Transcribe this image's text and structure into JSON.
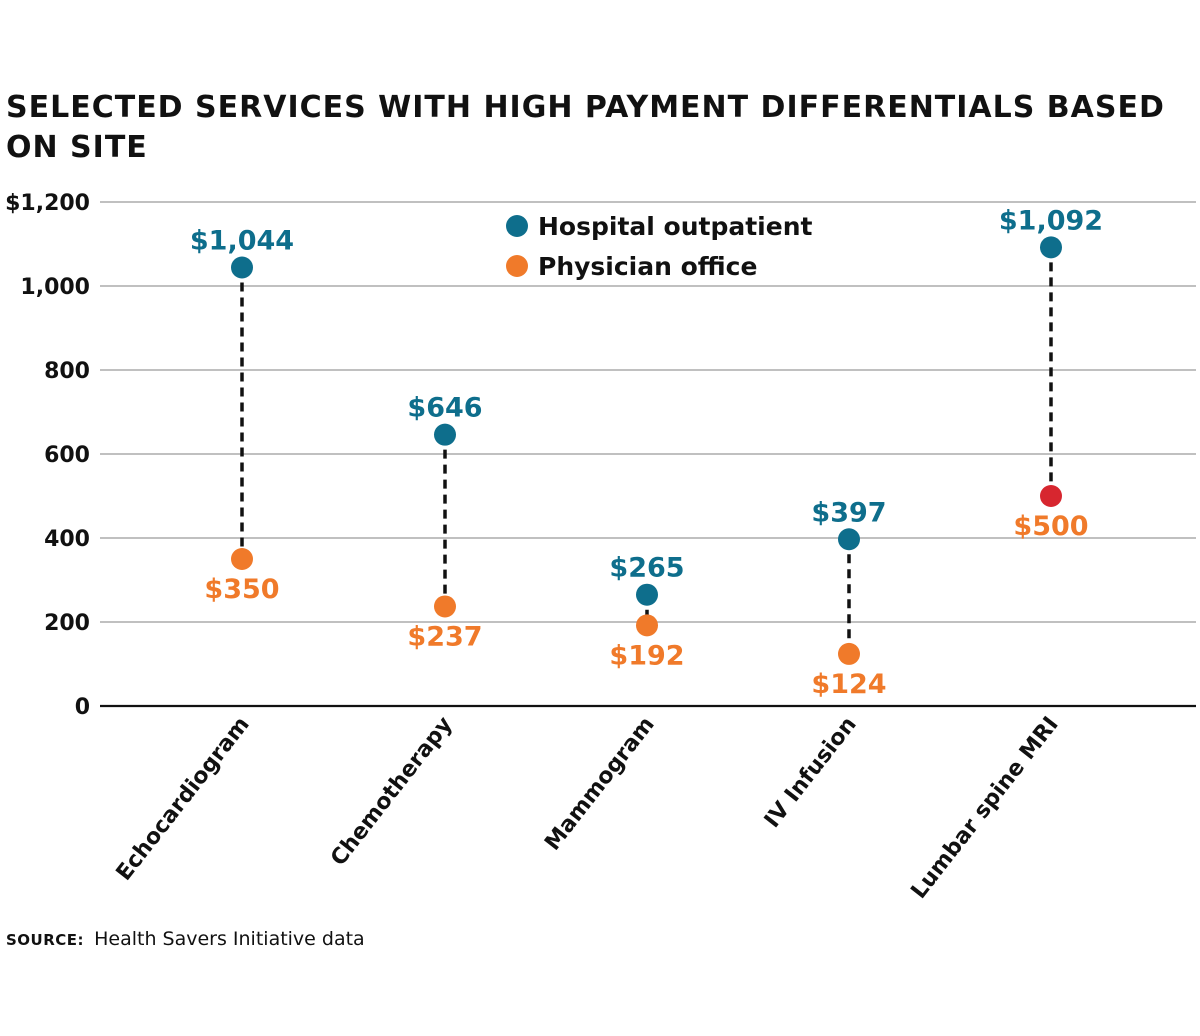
{
  "chart_data": {
    "type": "scatter",
    "title": "SELECTED SERVICES WITH HIGH PAYMENT DIFFERENTIALS BASED ON SITE",
    "categories": [
      "Echocardiogram",
      "Chemotherapy",
      "Mammogram",
      "IV Infusion",
      "Lumbar spine MRI"
    ],
    "series": [
      {
        "name": "Hospital outpatient",
        "color": "#0e6e8c",
        "values": [
          1044,
          646,
          265,
          397,
          1092
        ],
        "labels": [
          "$1,044",
          "$646",
          "$265",
          "$397",
          "$1,092"
        ]
      },
      {
        "name": "Physician office",
        "color": "#f07a2a",
        "values": [
          350,
          237,
          192,
          124,
          500
        ],
        "labels": [
          "$350",
          "$237",
          "$192",
          "$124",
          "$500"
        ],
        "point_colors": [
          "#f07a2a",
          "#f07a2a",
          "#f07a2a",
          "#f07a2a",
          "#d7262f"
        ]
      }
    ],
    "ylim": [
      0,
      1200
    ],
    "yticks": [
      0,
      200,
      400,
      600,
      800,
      1000,
      1200
    ],
    "ytick_labels": [
      "0",
      "200",
      "400",
      "600",
      "800",
      "1,000",
      "$1,200"
    ],
    "xlabel": "",
    "ylabel": "",
    "grid": true,
    "legend_position": "top-center"
  },
  "source": {
    "label": "SOURCE:",
    "text": "Health Savers Initiative data"
  }
}
